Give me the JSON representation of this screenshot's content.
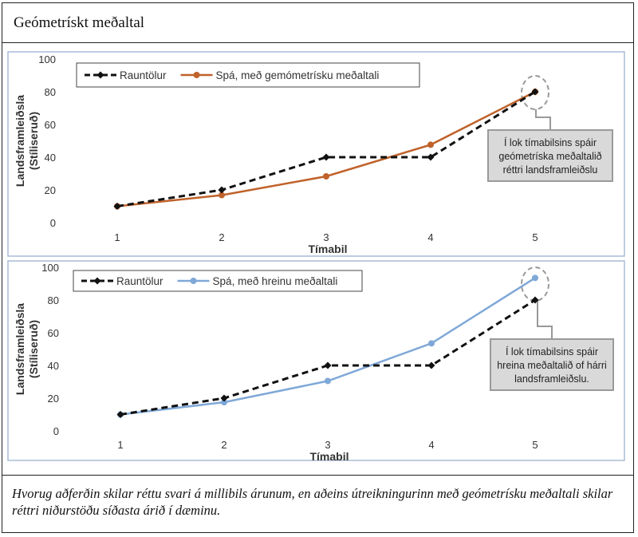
{
  "header": {
    "title": "Geómetrískt meðaltal"
  },
  "caption": "Hvorug aðferðin skilar réttu svari á millibils árunum, en aðeins útreikningurinn með geómetrísku meðaltali skilar réttri niðurstöðu síðasta árið í dæminu.",
  "colors": {
    "actual": "#111111",
    "geometric": "#c0622a",
    "arithmetic": "#7fa8d8",
    "callout_bg": "#d9d9d9"
  },
  "chart_data": [
    {
      "type": "line",
      "title": "",
      "xlabel": "Tímabil",
      "ylabel": [
        "Landsframleiðsla",
        "(Stíliseruð)"
      ],
      "categories": [
        "1",
        "2",
        "3",
        "4",
        "5"
      ],
      "ylim": [
        0,
        100
      ],
      "yticks": [
        "0",
        "20",
        "40",
        "60",
        "80",
        "100"
      ],
      "series": [
        {
          "name": "Rauntölur",
          "values": [
            10,
            20,
            40,
            40,
            80
          ],
          "style": "dashed",
          "color": "#111111",
          "marker": "diamond"
        },
        {
          "name": "Spá, með gemómetrísku meðaltali",
          "values": [
            10,
            16.8,
            28.3,
            47.6,
            80
          ],
          "style": "solid",
          "color": "#c0622a",
          "marker": "circle"
        }
      ],
      "legend_position": "top-left",
      "annotation": {
        "lines": [
          "Í lok tímabilsins spáir",
          "geómetríska meðaltalið",
          "réttri landsframleiðslu"
        ],
        "target_index": 4
      }
    },
    {
      "type": "line",
      "title": "",
      "xlabel": "Tímabil",
      "ylabel": [
        "Landsframleiðsla",
        "(Stíliseruð)"
      ],
      "categories": [
        "1",
        "2",
        "3",
        "4",
        "5"
      ],
      "ylim": [
        0,
        100
      ],
      "yticks": [
        "0",
        "20",
        "40",
        "60",
        "80",
        "100"
      ],
      "series": [
        {
          "name": "Rauntölur",
          "values": [
            10,
            20,
            40,
            40,
            80
          ],
          "style": "dashed",
          "color": "#111111",
          "marker": "diamond"
        },
        {
          "name": "Spá, með hreinu meðaltali",
          "values": [
            10,
            17.5,
            30.5,
            53.5,
            93.5
          ],
          "style": "solid",
          "color": "#7fa8d8",
          "marker": "circle"
        }
      ],
      "legend_position": "top-left",
      "annotation": {
        "lines": [
          "Í lok tímabilsins spáir",
          "hreina meðaltalið of hárri",
          "landsframleiðslu."
        ],
        "target_index": 4
      }
    }
  ]
}
